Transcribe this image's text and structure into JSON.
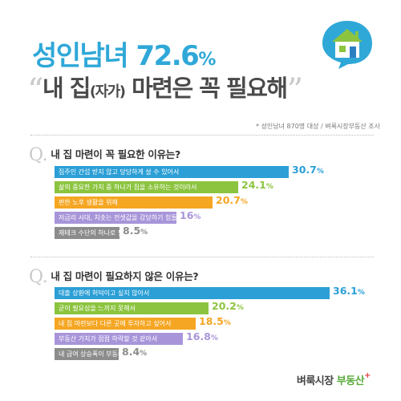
{
  "header": {
    "title_prefix": "성인남녀 72.6",
    "title_pct": "%",
    "subtitle_open_quote": "“",
    "subtitle_main": "내 집",
    "subtitle_paren": "(자가)",
    "subtitle_rest": " 마련은 꼭 필요해",
    "subtitle_close_quote": "”",
    "survey_note": "* 성인남녀 870명 대상 / 벼룩시장부동산 조사"
  },
  "colors": {
    "blue": "#2b9fd6",
    "green": "#8cc43f",
    "orange": "#f5a623",
    "purple": "#a895d9",
    "gray": "#8c8c8c",
    "headline": "#2fa8d8"
  },
  "logo": {
    "part1": "벼룩시장",
    "part2": " 부동산",
    "plus": "+"
  },
  "chart_data": [
    {
      "type": "bar",
      "orientation": "horizontal",
      "question_mark": "Q.",
      "title": "내 집 마련이 꼭 필요한 이유는?",
      "unit": "%",
      "categories": [
        "집주인 간섭 받지 않고 당당하게 살 수 있어서",
        "삶의 중요한 가치 중 하나가 집을 소유하는 것이라서",
        "편한 노후 생활을 위해",
        "저금리 시대, 치솟는 전셋값을 감당하기 힘들어서",
        "재테크 수단의 하나로 필요"
      ],
      "values": [
        30.7,
        24.1,
        20.7,
        16,
        8.5
      ],
      "value_labels": [
        "30.7",
        "24.1",
        "20.7",
        "16",
        "8.5"
      ],
      "bar_colors": [
        "#2b9fd6",
        "#8cc43f",
        "#f5a623",
        "#a895d9",
        "#8c8c8c"
      ],
      "xlim": [
        0,
        36.1
      ]
    },
    {
      "type": "bar",
      "orientation": "horizontal",
      "question_mark": "Q.",
      "title": "내 집 마련이 필요하지 않은 이유는?",
      "unit": "%",
      "categories": [
        "대출 상환에 허덕이고 싶지 않아서",
        "굳이 필요성을 느끼지 못해서",
        "내 집 마련보다 다른 곳에 투자하고 싶어서",
        "부동산 가치가 점점 하락할 것 같아서",
        "내 급여 상승폭이 부동산 상승폭에 비해 너무 작아서"
      ],
      "values": [
        36.1,
        20.2,
        18.5,
        16.8,
        8.4
      ],
      "value_labels": [
        "36.1",
        "20.2",
        "18.5",
        "16.8",
        "8.4"
      ],
      "bar_colors": [
        "#2b9fd6",
        "#8cc43f",
        "#f5a623",
        "#a895d9",
        "#8c8c8c"
      ],
      "xlim": [
        0,
        36.1
      ]
    }
  ]
}
